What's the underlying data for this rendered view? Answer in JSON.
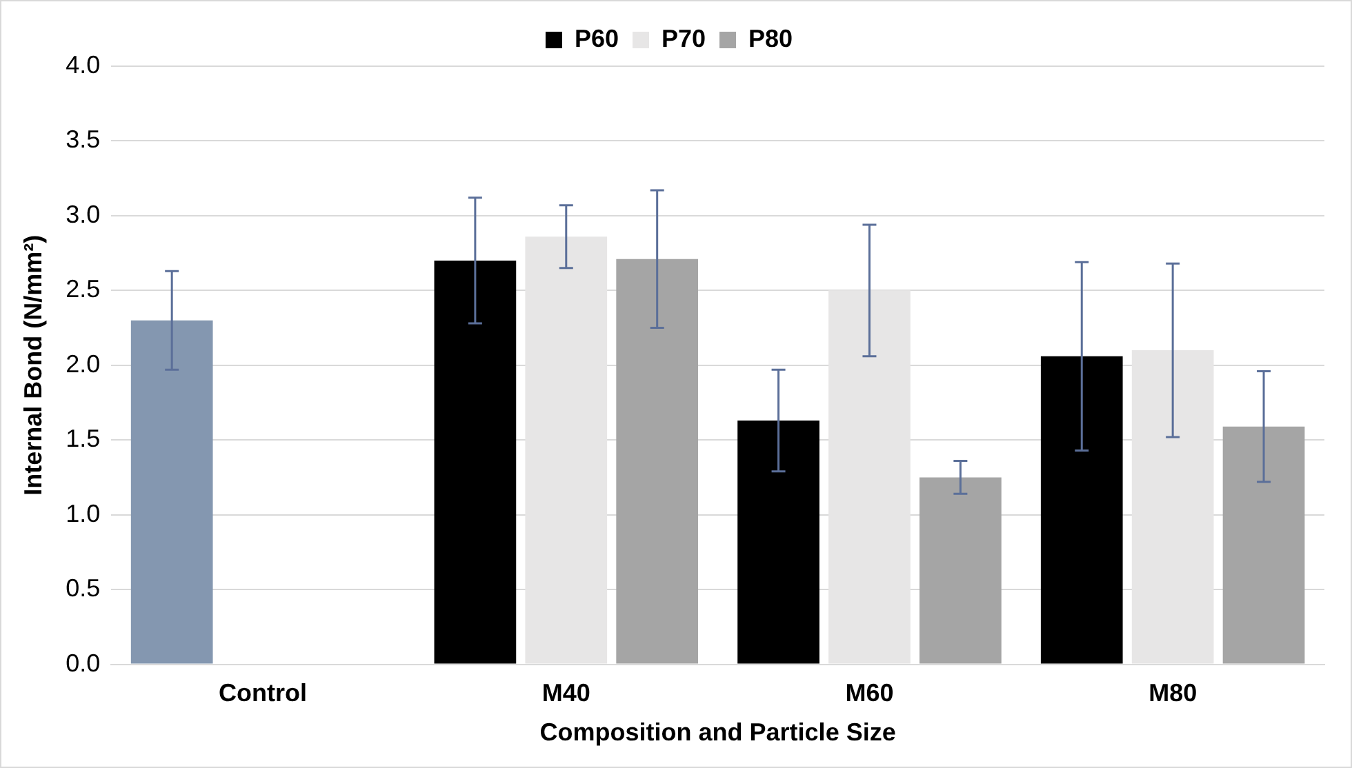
{
  "chart_data": {
    "type": "bar",
    "xlabel": "Composition and Particle Size",
    "ylabel": "Internal Bond (N/mm²)",
    "categories": [
      "Control",
      "M40",
      "M60",
      "M80"
    ],
    "series": [
      {
        "name": "P60",
        "color": "#000000",
        "colors": [
          "#8497b0",
          "#000000",
          "#000000",
          "#000000"
        ],
        "values": [
          2.3,
          2.7,
          1.63,
          2.06
        ],
        "errors": [
          0.33,
          0.42,
          0.34,
          0.63
        ]
      },
      {
        "name": "P70",
        "color": "#e7e6e6",
        "values": [
          null,
          2.86,
          2.5,
          2.1
        ],
        "errors": [
          null,
          0.21,
          0.44,
          0.58
        ]
      },
      {
        "name": "P80",
        "color": "#a5a5a5",
        "values": [
          null,
          2.71,
          1.25,
          1.59
        ],
        "errors": [
          null,
          0.46,
          0.11,
          0.37
        ]
      }
    ],
    "ylim": [
      0,
      4
    ],
    "yticks": [
      {
        "value": 0,
        "label": "0.0"
      },
      0.5,
      {
        "value": 1,
        "label": "1.0"
      },
      1.5,
      {
        "value": 2,
        "label": "2.0"
      },
      2.5,
      {
        "value": 3,
        "label": "3.0"
      },
      3.5,
      {
        "value": 4,
        "label": "4.0"
      }
    ],
    "grid": "y",
    "legend": "top"
  }
}
